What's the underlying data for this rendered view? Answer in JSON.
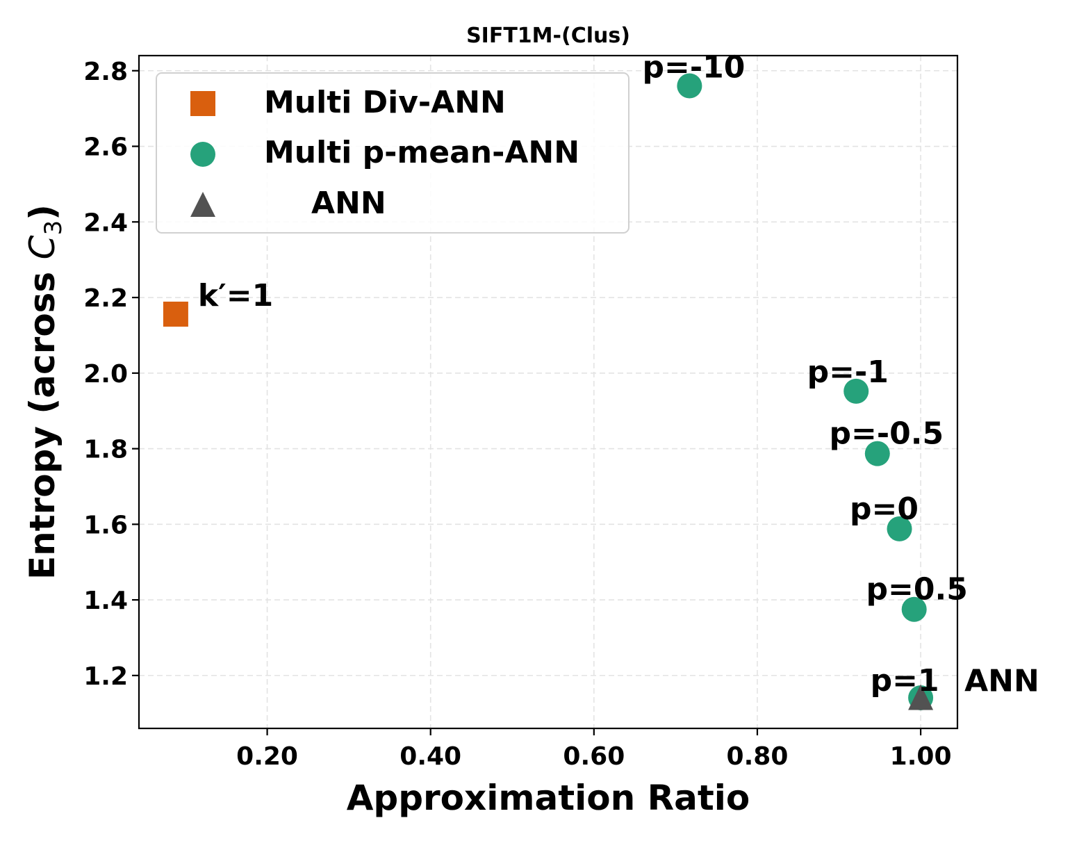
{
  "chart_data": {
    "type": "scatter",
    "title": "SIFT1M-(Clus)",
    "xlabel": "Approximation Ratio",
    "ylabel": "Entropy (across C3)",
    "ylabel_parts": {
      "main": "Entropy (across ",
      "var": "C",
      "sub": "3",
      "close": ")"
    },
    "xlim": [
      0.043,
      1.045
    ],
    "ylim": [
      1.06,
      2.84
    ],
    "xticks": [
      0.2,
      0.4,
      0.6,
      0.8,
      1.0
    ],
    "xtick_labels": [
      "0.20",
      "0.40",
      "0.60",
      "0.80",
      "1.00"
    ],
    "yticks": [
      1.2,
      1.4,
      1.6,
      1.8,
      2.0,
      2.2,
      2.4,
      2.6,
      2.8
    ],
    "ytick_labels": [
      "1.2",
      "1.4",
      "1.6",
      "1.8",
      "2.0",
      "2.2",
      "2.4",
      "2.6",
      "2.8"
    ],
    "grid": true,
    "legend_position": "top-left",
    "series": [
      {
        "name": "Multi Div-ANN",
        "marker": "square",
        "color": "#d95f0e",
        "points": [
          {
            "x": 0.088,
            "y": 2.156,
            "label": "k′=1"
          }
        ]
      },
      {
        "name": "Multi p-mean-ANN",
        "marker": "circle",
        "color": "#26a27b",
        "points": [
          {
            "x": 0.717,
            "y": 2.76,
            "label": "p=-10"
          },
          {
            "x": 0.921,
            "y": 1.952,
            "label": "p=-1"
          },
          {
            "x": 0.947,
            "y": 1.787,
            "label": "p=-0.5"
          },
          {
            "x": 0.974,
            "y": 1.588,
            "label": "p=0"
          },
          {
            "x": 0.992,
            "y": 1.375,
            "label": "p=0.5"
          },
          {
            "x": 1.0,
            "y": 1.141,
            "label": "p=1"
          }
        ]
      },
      {
        "name": "ANN",
        "marker": "triangle",
        "color": "#525252",
        "points": [
          {
            "x": 1.0,
            "y": 1.14,
            "label": "ANN"
          }
        ]
      }
    ]
  }
}
